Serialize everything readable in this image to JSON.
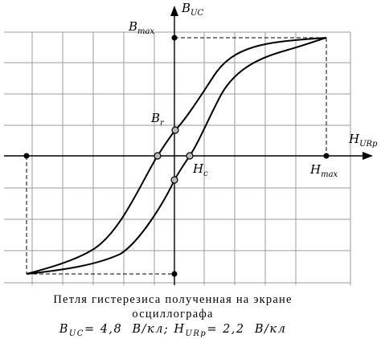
{
  "labels": {
    "y_axis": {
      "main": "B",
      "sub": "UC"
    },
    "x_axis": {
      "main": "H",
      "sub": "URp"
    },
    "b_max": {
      "main": "B",
      "sub": "max"
    },
    "h_max": {
      "main": "H",
      "sub": "max"
    },
    "b_r": {
      "main": "B",
      "sub": "r"
    },
    "h_c": {
      "main": "H",
      "sub": "c"
    }
  },
  "caption": {
    "line1": "Петля гистерезиса полученная на экране",
    "line2": "осциллографа",
    "line3": {
      "b_sym": "B",
      "b_sub": "UC",
      "b_val": "= 4,8  В/кл;",
      "h_sym": "H",
      "h_sub": "URp",
      "h_val": "= 2,2  В/кл"
    }
  }
}
